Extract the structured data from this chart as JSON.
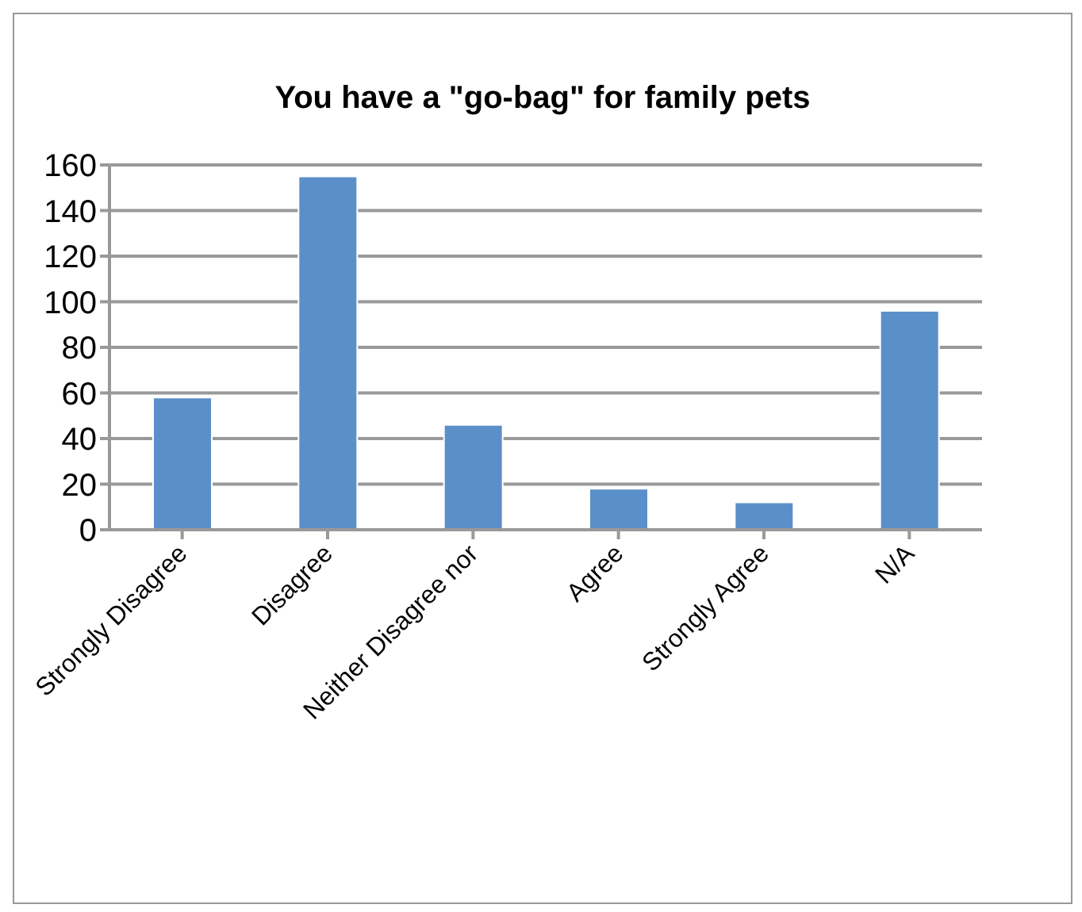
{
  "chart_data": {
    "type": "bar",
    "title": "You have a \"go-bag\" for family pets",
    "categories": [
      "Strongly Disagree",
      "Disagree",
      "Neither Disagree nor",
      "Agree",
      "Strongly Agree",
      "N/A"
    ],
    "values": [
      58,
      155,
      46,
      18,
      12,
      96
    ],
    "color": "#5b8fc9",
    "ylim": [
      0,
      160
    ],
    "yticks": [
      0,
      20,
      40,
      60,
      80,
      100,
      120,
      140,
      160
    ],
    "grid": "y"
  }
}
